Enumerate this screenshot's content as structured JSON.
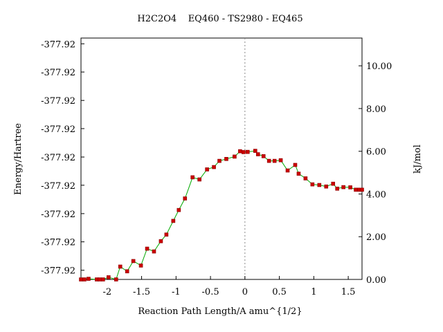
{
  "chart_data": {
    "type": "line",
    "title": "H2C2O4    EQ460 - TS2980 - EQ465",
    "xlabel": "Reaction Path Length/A amu^{1/2}",
    "ylabel_left": "Energy/Hartree",
    "ylabel_right": "kJ/mol",
    "xlim": [
      -2.38,
      1.7
    ],
    "ylim_right": [
      0.0,
      11.3
    ],
    "x_ticks": [
      -2,
      -1.5,
      -1,
      -0.5,
      0,
      0.5,
      1,
      1.5
    ],
    "x_tick_labels": [
      "-2",
      "-1.5",
      "-1",
      "-0.5",
      "0",
      "0.5",
      "1",
      "1.5"
    ],
    "y_left_tick_labels": [
      "-377.92",
      "-377.92",
      "-377.92",
      "-377.92",
      "-377.92",
      "-377.92",
      "-377.92",
      "-377.92",
      "-377.92"
    ],
    "y_left_tick_values_kjmol": [
      0.43,
      1.76,
      3.08,
      4.41,
      5.73,
      7.06,
      8.38,
      9.71,
      11.03
    ],
    "y_right_ticks": [
      0,
      2,
      4,
      6,
      8,
      10
    ],
    "y_right_tick_labels": [
      "0.00",
      "2.00",
      "4.00",
      "6.00",
      "8.00",
      "10.00"
    ],
    "ts_marker_x": 0,
    "colors": {
      "line": "#00aa00",
      "point": "#cc0000",
      "axis": "#000000",
      "ts_line": "#888888"
    },
    "series": [
      {
        "x": [
          -2.38,
          -2.33,
          -2.27,
          -2.15,
          -2.11,
          -2.06,
          -1.98,
          -1.87,
          -1.81,
          -1.71,
          -1.62,
          -1.51,
          -1.42,
          -1.32,
          -1.22,
          -1.14,
          -1.04,
          -0.96,
          -0.87,
          -0.76,
          -0.66,
          -0.55,
          -0.45,
          -0.37,
          -0.27,
          -0.15,
          -0.07,
          -0.02,
          0.04,
          0.15,
          0.19,
          0.27,
          0.35,
          0.43,
          0.52,
          0.62,
          0.73,
          0.78,
          0.88,
          0.98,
          1.08,
          1.18,
          1.28,
          1.34,
          1.43,
          1.53,
          1.61,
          1.66,
          1.7
        ],
        "y": [
          0.0,
          0.0,
          0.03,
          0.0,
          0.0,
          0.0,
          0.1,
          0.0,
          0.6,
          0.38,
          0.86,
          0.65,
          1.44,
          1.31,
          1.79,
          2.1,
          2.74,
          3.25,
          3.79,
          4.78,
          4.68,
          5.15,
          5.26,
          5.55,
          5.64,
          5.75,
          6.0,
          5.96,
          5.97,
          6.02,
          5.86,
          5.77,
          5.55,
          5.55,
          5.58,
          5.1,
          5.36,
          4.95,
          4.73,
          4.45,
          4.42,
          4.35,
          4.48,
          4.25,
          4.32,
          4.31,
          4.2,
          4.2,
          4.2
        ]
      }
    ]
  }
}
